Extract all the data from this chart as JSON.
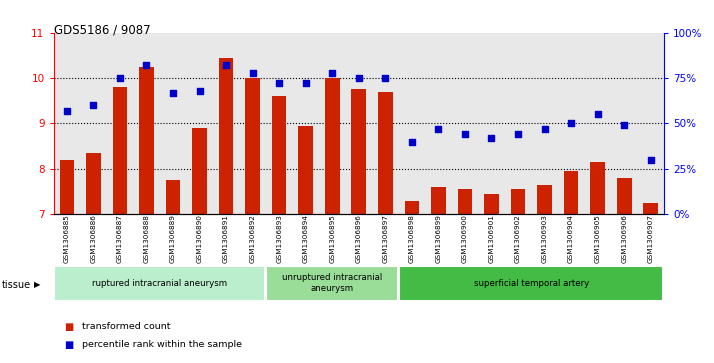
{
  "title": "GDS5186 / 9087",
  "samples": [
    "GSM1306885",
    "GSM1306886",
    "GSM1306887",
    "GSM1306888",
    "GSM1306889",
    "GSM1306890",
    "GSM1306891",
    "GSM1306892",
    "GSM1306893",
    "GSM1306894",
    "GSM1306895",
    "GSM1306896",
    "GSM1306897",
    "GSM1306898",
    "GSM1306899",
    "GSM1306900",
    "GSM1306901",
    "GSM1306902",
    "GSM1306903",
    "GSM1306904",
    "GSM1306905",
    "GSM1306906",
    "GSM1306907"
  ],
  "bar_values": [
    8.2,
    8.35,
    9.8,
    10.25,
    7.75,
    8.9,
    10.45,
    10.0,
    9.6,
    8.95,
    10.0,
    9.75,
    9.7,
    7.3,
    7.6,
    7.55,
    7.45,
    7.55,
    7.65,
    7.95,
    8.15,
    7.8,
    7.25
  ],
  "percentile_values": [
    57,
    60,
    75,
    82,
    67,
    68,
    82,
    78,
    72,
    72,
    78,
    75,
    75,
    40,
    47,
    44,
    42,
    44,
    47,
    50,
    55,
    49,
    30
  ],
  "bar_color": "#cc2200",
  "dot_color": "#0000cc",
  "ylim_left": [
    7,
    11
  ],
  "ylim_right": [
    0,
    100
  ],
  "yticks_left": [
    7,
    8,
    9,
    10,
    11
  ],
  "ytick_labels_right": [
    "0%",
    "25%",
    "50%",
    "75%",
    "100%"
  ],
  "groups": [
    {
      "label": "ruptured intracranial aneurysm",
      "start": 0,
      "end": 8,
      "color": "#bbeecc"
    },
    {
      "label": "unruptured intracranial\naneurysm",
      "start": 8,
      "end": 13,
      "color": "#99dd99"
    },
    {
      "label": "superficial temporal artery",
      "start": 13,
      "end": 23,
      "color": "#44bb44"
    }
  ],
  "tissue_label": "tissue",
  "legend_bar_label": "transformed count",
  "legend_dot_label": "percentile rank within the sample",
  "plot_bg": "#e8e8e8",
  "fig_bg": "#ffffff"
}
